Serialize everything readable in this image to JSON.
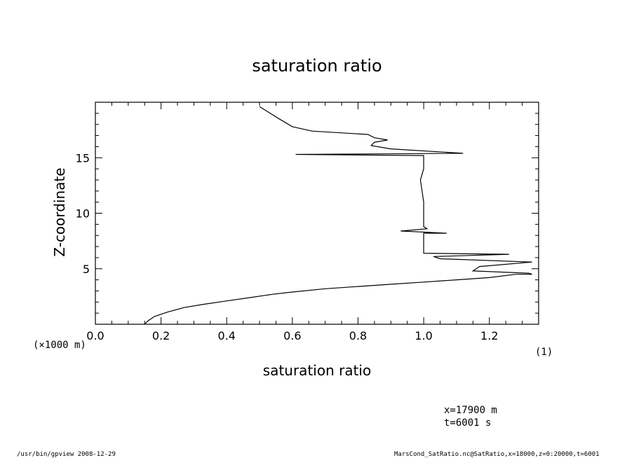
{
  "chart_data": {
    "type": "line",
    "title": "saturation ratio",
    "xlabel": "saturation ratio",
    "ylabel": "Z-coordinate",
    "xlim": [
      0.0,
      1.35
    ],
    "ylim": [
      0,
      20
    ],
    "xticks": [
      "0.0",
      "0.2",
      "0.4",
      "0.6",
      "0.8",
      "1.0",
      "1.2"
    ],
    "yticks": [
      "5",
      "10",
      "15"
    ],
    "x_unit": "(1)",
    "y_unit": "(×1000 m)",
    "grid": false,
    "series": [
      {
        "x": [
          0.15,
          0.16,
          0.18,
          0.22,
          0.27,
          0.33,
          0.4,
          0.47,
          0.54,
          0.6,
          0.7,
          0.8,
          0.9,
          1.0,
          1.1,
          1.2,
          1.28,
          1.33,
          1.32,
          1.15,
          1.17,
          1.33,
          1.05,
          1.03,
          1.26,
          1.0,
          1.0,
          1.0,
          1.07,
          0.93,
          1.01,
          1.0,
          1.0,
          0.99,
          1.0,
          1.0,
          0.61,
          1.12,
          0.9,
          0.84,
          0.85,
          0.89,
          0.85,
          0.83,
          0.66,
          0.6,
          0.56,
          0.5
        ],
        "y": [
          0.0,
          0.3,
          0.7,
          1.1,
          1.5,
          1.8,
          2.1,
          2.4,
          2.7,
          2.9,
          3.2,
          3.4,
          3.6,
          3.8,
          4.0,
          4.2,
          4.5,
          4.5,
          4.6,
          4.8,
          5.2,
          5.6,
          5.9,
          6.1,
          6.3,
          6.4,
          6.7,
          8.2,
          8.2,
          8.4,
          8.6,
          8.8,
          11.0,
          13.0,
          14.0,
          15.2,
          15.3,
          15.4,
          15.8,
          16.1,
          16.4,
          16.6,
          16.8,
          17.1,
          17.4,
          17.8,
          18.5,
          19.6
        ]
      }
    ]
  },
  "footer": {
    "coords": "x=17900  m",
    "time": "t=6001  s",
    "left": "/usr/bin/gpview    2008-12-29",
    "right": "MarsCond_SatRatio.nc@SatRatio,x=18000,z=0:20000,t=6001"
  }
}
